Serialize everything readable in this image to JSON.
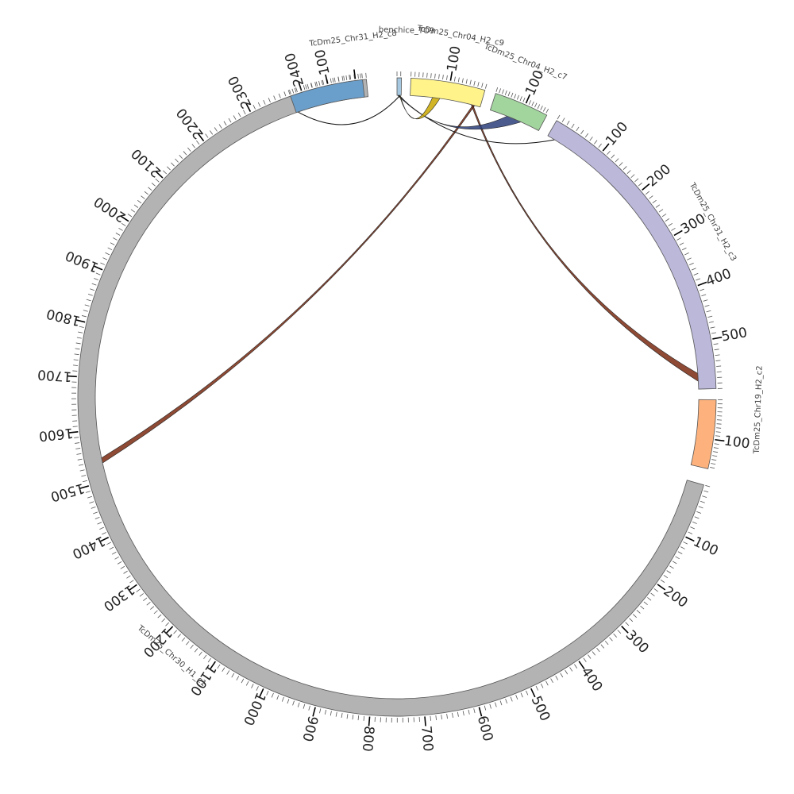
{
  "diagram": {
    "type": "circos",
    "segments": [
      {
        "id": "chr30",
        "name": "TcDm25_Chr30_H1_c1",
        "length": 2520,
        "color": "#b3b3b3",
        "ticks_major": 100,
        "ticks_minor": 10,
        "labels": [
          "100",
          "200",
          "300",
          "400",
          "500",
          "600",
          "700",
          "800",
          "900",
          "1000",
          "1100",
          "1200",
          "1300",
          "1400",
          "1500",
          "1600",
          "1700",
          "1800",
          "1900",
          "2000",
          "2100",
          "2200",
          "2300",
          "2400"
        ]
      },
      {
        "id": "chr31a",
        "name": "TcDm25_Chr31_H2_c8",
        "length": 190,
        "color": "#6a9ecb",
        "ticks_major": 100,
        "ticks_minor": 10,
        "labels": [
          "100"
        ]
      },
      {
        "id": "benchic",
        "name": "benchice_TO9",
        "length": 12,
        "color": "#a6c8e0",
        "ticks_major": 100,
        "ticks_minor": 10,
        "labels": []
      },
      {
        "id": "chr04a",
        "name": "TcDm25_Chr04_H2_c9",
        "length": 190,
        "color": "#fff38a",
        "ticks_major": 100,
        "ticks_minor": 10,
        "labels": [
          "100"
        ]
      },
      {
        "id": "chr04b",
        "name": "TcDm25_Chr04_H2_c7",
        "length": 175,
        "color": "#a2d49e",
        "ticks_major": 100,
        "ticks_minor": 10,
        "labels": [
          "100"
        ]
      },
      {
        "id": "chr31b",
        "name": "TcDm25_Chr31_H2_c3",
        "length": 590,
        "color": "#bbb8da",
        "ticks_major": 100,
        "ticks_minor": 10,
        "labels": [
          "100",
          "200",
          "300",
          "400",
          "500"
        ]
      },
      {
        "id": "chr19",
        "name": "TcDm25_Chr19_H2_c2",
        "length": 175,
        "color": "#fdb27d",
        "ticks_major": 100,
        "ticks_minor": 10,
        "labels": [
          "100"
        ]
      }
    ],
    "links": [
      {
        "from": [
          "chr30",
          1535,
          1545
        ],
        "to": [
          "chr04a",
          170,
          175
        ],
        "color": "#7a2a10"
      },
      {
        "from": [
          "chr31b",
          560,
          575
        ],
        "to": [
          "chr04a",
          165,
          170
        ],
        "color": "#7a2a10"
      },
      {
        "from": [
          "chr31b",
          15,
          20
        ],
        "to": [
          "benchic",
          2,
          4
        ],
        "color": "#111111"
      },
      {
        "from": [
          "chr04b",
          60,
          110
        ],
        "to": [
          "benchic",
          4,
          7
        ],
        "color": "#2c3e7a"
      },
      {
        "from": [
          "chr04a",
          60,
          80
        ],
        "to": [
          "benchic",
          7,
          9
        ],
        "color": "#c9a800"
      },
      {
        "from": [
          "chr31a",
          5,
          8
        ],
        "to": [
          "benchic",
          9,
          11
        ],
        "color": "#111111"
      }
    ]
  }
}
